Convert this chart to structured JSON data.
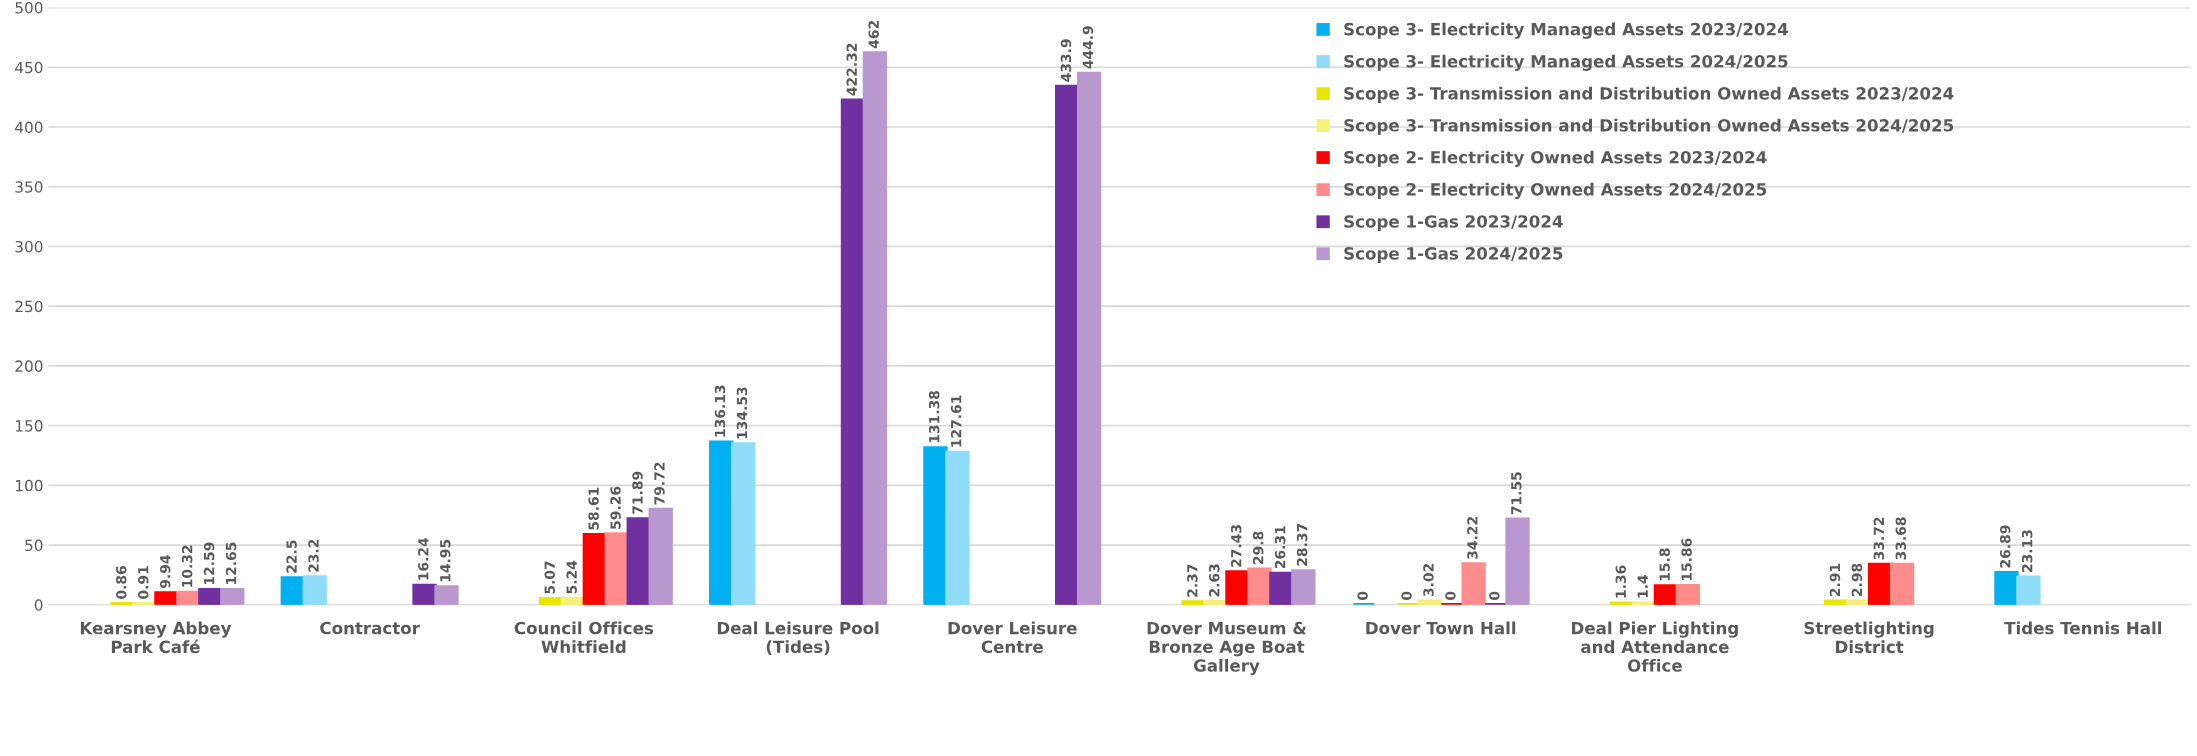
{
  "chart_data": {
    "type": "bar",
    "categories": [
      "Kearsney Abbey\nPark Café",
      "Contractor",
      "Council Offices\nWhitfield",
      "Deal Leisure Pool\n(Tides)",
      "Dover Leisure\nCentre",
      "Dover Museum &\nBronze Age Boat\nGallery",
      "Dover Town Hall",
      "Deal Pier Lighting\nand Attendance\nOffice",
      "Streetlighting\nDistrict",
      "Tides Tennis Hall"
    ],
    "series": [
      {
        "name": "Scope 3- Electricity Managed Assets 2023/2024",
        "color": "#00b0f0",
        "values": [
          null,
          22.5,
          null,
          136.13,
          131.38,
          null,
          0,
          null,
          null,
          26.89
        ]
      },
      {
        "name": "Scope 3- Electricity Managed Assets 2024/2025",
        "color": "#8fdcf8",
        "values": [
          null,
          23.2,
          null,
          134.53,
          127.61,
          null,
          null,
          null,
          null,
          23.13
        ]
      },
      {
        "name": "Scope 3- Transmission and Distribution Owned Assets 2023/2024",
        "color": "#e6e600",
        "values": [
          0.86,
          null,
          5.07,
          null,
          null,
          2.37,
          0,
          1.36,
          2.91,
          null
        ]
      },
      {
        "name": "Scope 3- Transmission and Distribution Owned Assets 2024/2025",
        "color": "#f5f07a",
        "values": [
          0.91,
          null,
          5.24,
          null,
          null,
          2.63,
          3.02,
          1.4,
          2.98,
          null
        ]
      },
      {
        "name": "Scope 2- Electricity Owned Assets 2023/2024",
        "color": "#ff0000",
        "values": [
          9.94,
          null,
          58.61,
          null,
          null,
          27.43,
          0,
          15.8,
          33.72,
          null
        ]
      },
      {
        "name": "Scope 2- Electricity Owned Assets 2024/2025",
        "color": "#ff8c8c",
        "values": [
          10.32,
          null,
          59.26,
          null,
          null,
          29.8,
          34.22,
          15.86,
          33.68,
          null
        ]
      },
      {
        "name": "Scope 1-Gas 2023/2024",
        "color": "#7030a0",
        "values": [
          12.59,
          16.24,
          71.89,
          422.32,
          433.9,
          26.31,
          0,
          null,
          null,
          null
        ]
      },
      {
        "name": "Scope 1-Gas 2024/2025",
        "color": "#b998d0",
        "values": [
          12.65,
          14.95,
          79.72,
          462,
          444.9,
          28.37,
          71.55,
          null,
          null,
          null
        ]
      }
    ],
    "ylim": [
      0,
      500
    ],
    "yticks": [
      0,
      50,
      100,
      150,
      200,
      250,
      300,
      350,
      400,
      450,
      500
    ],
    "grid": "y",
    "legend": "top right",
    "data_labels": true
  }
}
